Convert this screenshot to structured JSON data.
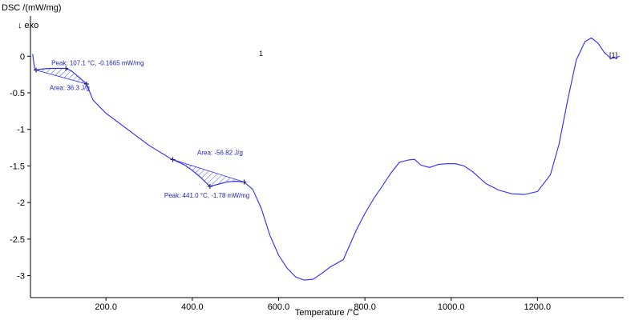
{
  "chart_data": {
    "type": "line",
    "ylabel": "DSC /(mW/mg)",
    "direction_label": "↓ exo",
    "xlabel": "Temperature /°C",
    "curve_id": "1",
    "segment_label": "[1]",
    "xlim": [
      25,
      1400
    ],
    "ylim": [
      -3.3,
      0.55
    ],
    "x_ticks": [
      {
        "value": 200,
        "label": "200.0"
      },
      {
        "value": 400,
        "label": "400.0"
      },
      {
        "value": 600,
        "label": "600.0"
      },
      {
        "value": 800,
        "label": "800.0"
      },
      {
        "value": 1000,
        "label": "1000.0"
      },
      {
        "value": 1200,
        "label": "1200.0"
      }
    ],
    "y_ticks": [
      {
        "value": 0,
        "label": "0"
      },
      {
        "value": -0.5,
        "label": "-0.5"
      },
      {
        "value": -1,
        "label": "-1"
      },
      {
        "value": -1.5,
        "label": "-1.5"
      },
      {
        "value": -2,
        "label": "-2"
      },
      {
        "value": -2.5,
        "label": "-2.5"
      },
      {
        "value": -3,
        "label": "-3"
      }
    ],
    "series": [
      {
        "color": "#2a2aff",
        "x": [
          30,
          33,
          35,
          38,
          45,
          60,
          80,
          100,
          107,
          120,
          140,
          155,
          170,
          200,
          250,
          300,
          350,
          380,
          400,
          420,
          441,
          460,
          480,
          500,
          520,
          540,
          560,
          580,
          600,
          620,
          640,
          660,
          680,
          700,
          720,
          750,
          780,
          800,
          820,
          840,
          860,
          880,
          900,
          915,
          930,
          950,
          970,
          990,
          1010,
          1030,
          1050,
          1080,
          1110,
          1140,
          1170,
          1200,
          1230,
          1250,
          1270,
          1290,
          1310,
          1325,
          1340,
          1355,
          1370,
          1382,
          1390
        ],
        "y": [
          0.03,
          -0.1,
          -0.17,
          -0.19,
          -0.18,
          -0.17,
          -0.165,
          -0.165,
          -0.1665,
          -0.2,
          -0.3,
          -0.38,
          -0.6,
          -0.78,
          -1.0,
          -1.22,
          -1.4,
          -1.48,
          -1.56,
          -1.66,
          -1.78,
          -1.75,
          -1.72,
          -1.71,
          -1.72,
          -1.82,
          -2.08,
          -2.45,
          -2.72,
          -2.9,
          -3.02,
          -3.06,
          -3.05,
          -2.97,
          -2.88,
          -2.78,
          -2.38,
          -2.15,
          -1.95,
          -1.78,
          -1.6,
          -1.45,
          -1.42,
          -1.41,
          -1.49,
          -1.52,
          -1.48,
          -1.47,
          -1.47,
          -1.5,
          -1.58,
          -1.74,
          -1.83,
          -1.88,
          -1.89,
          -1.85,
          -1.62,
          -1.2,
          -0.6,
          -0.05,
          0.2,
          0.25,
          0.18,
          0.05,
          -0.03,
          -0.02,
          0.0
        ]
      }
    ],
    "annotations": [
      {
        "peak_label": "Peak: 107.1 °C, -0.1665 mW/mg",
        "area_label": "Area: 36.3 J/g",
        "peak_x": 107.1,
        "peak_y": -0.1665,
        "range": [
          38,
          155
        ]
      },
      {
        "peak_label": "Peak: 441.0 °C, -1.78 mW/mg",
        "area_label": "Area: -56.82 J/g",
        "peak_x": 441.0,
        "peak_y": -1.78,
        "range": [
          355,
          520
        ]
      }
    ]
  }
}
